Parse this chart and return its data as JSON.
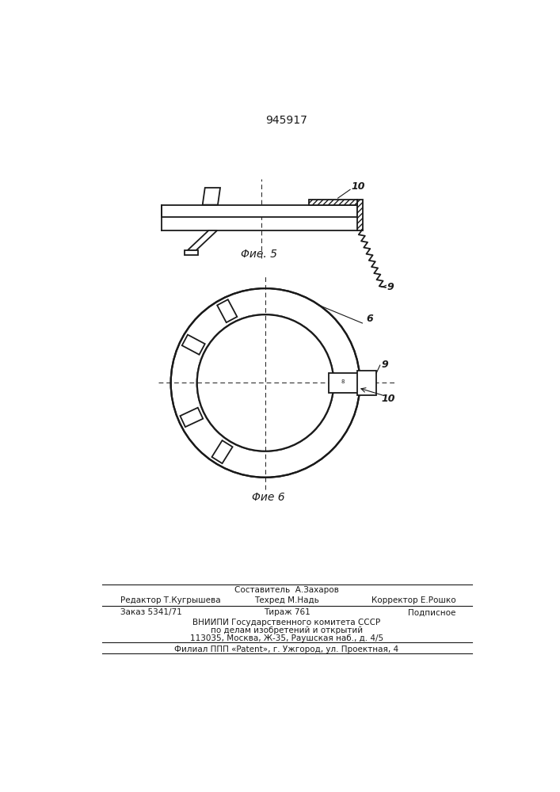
{
  "patent_number": "945917",
  "fig5_label": "Φие. 5",
  "fig6_label": "Φие 6",
  "label_9": "9",
  "label_10": "10",
  "label_6": "6",
  "footer_line1": "Составитель  А.Захаров",
  "footer_line2_left": "Редактор Т.Кугрышева",
  "footer_line2_mid": "Техред М.Надь",
  "footer_line2_right": "Корректор Е.Рошко",
  "footer_line3_left": "Заказ 5341/71",
  "footer_line3_mid": "Тираж 761",
  "footer_line3_right": "Подписное",
  "footer_line4": "ВНИИПИ Государственного комитета СССР",
  "footer_line5": "по делам изобретений и открытий",
  "footer_line6": "113035, Москва, Ж-35, Раушская наб., д. 4/5",
  "footer_line7": "Филиал ППП «Patent», г. Ужгород, ул. Проектная, 4",
  "bg_color": "#ffffff",
  "line_color": "#1a1a1a"
}
